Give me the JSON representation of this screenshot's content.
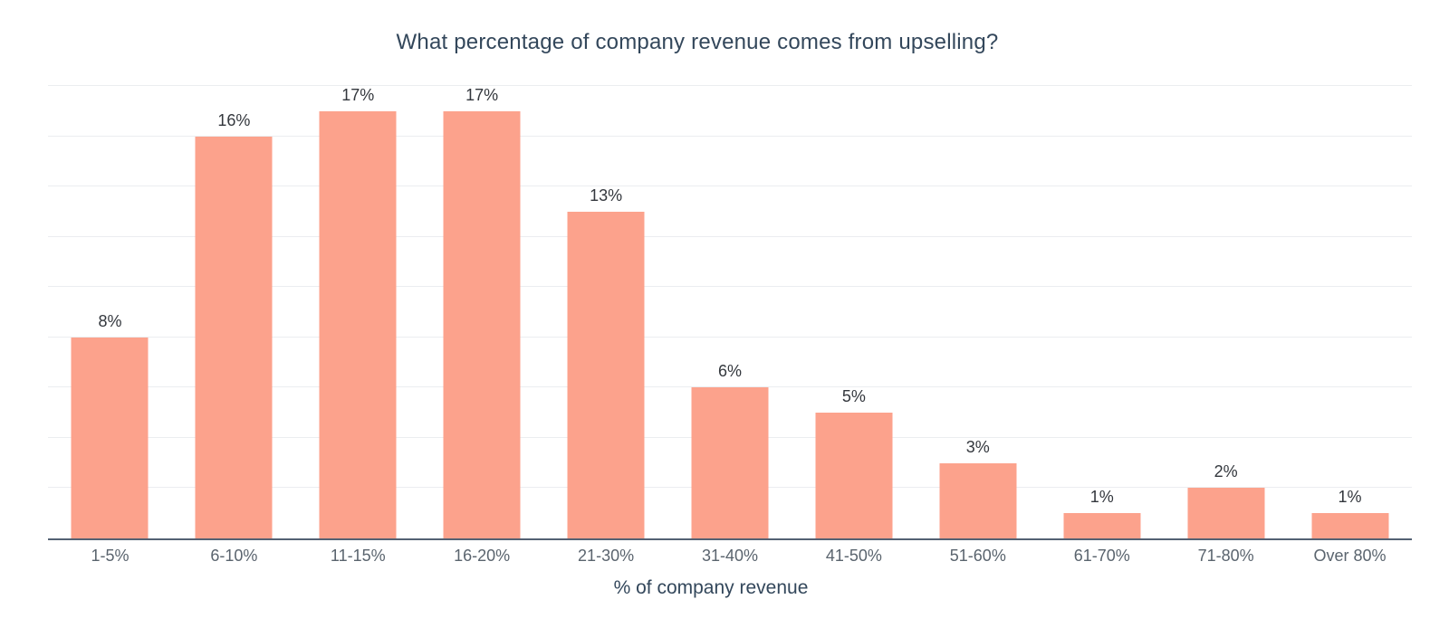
{
  "chart_data": {
    "type": "bar",
    "title": "What percentage of company revenue comes from upselling?",
    "xlabel": "% of company revenue",
    "ylabel": "",
    "categories": [
      "1-5%",
      "6-10%",
      "11-15%",
      "16-20%",
      "21-30%",
      "31-40%",
      "41-50%",
      "51-60%",
      "61-70%",
      "71-80%",
      "Over 80%"
    ],
    "values": [
      8,
      16,
      17,
      17,
      13,
      6,
      5,
      3,
      1,
      2,
      1
    ],
    "data_labels": [
      "8%",
      "16%",
      "17%",
      "17%",
      "13%",
      "6%",
      "5%",
      "3%",
      "1%",
      "2%",
      "1%"
    ],
    "ylim": [
      0,
      18
    ],
    "grid_step": 2,
    "grid": true,
    "legend": false,
    "y_tick_labels_visible": false,
    "colors": {
      "bar": "#fca28c",
      "title": "#33475b",
      "axis_line": "#536173",
      "gridline": "#ebedf0",
      "tick_label": "#5a646e",
      "value_label": "#33373d",
      "background": "#ffffff"
    }
  }
}
